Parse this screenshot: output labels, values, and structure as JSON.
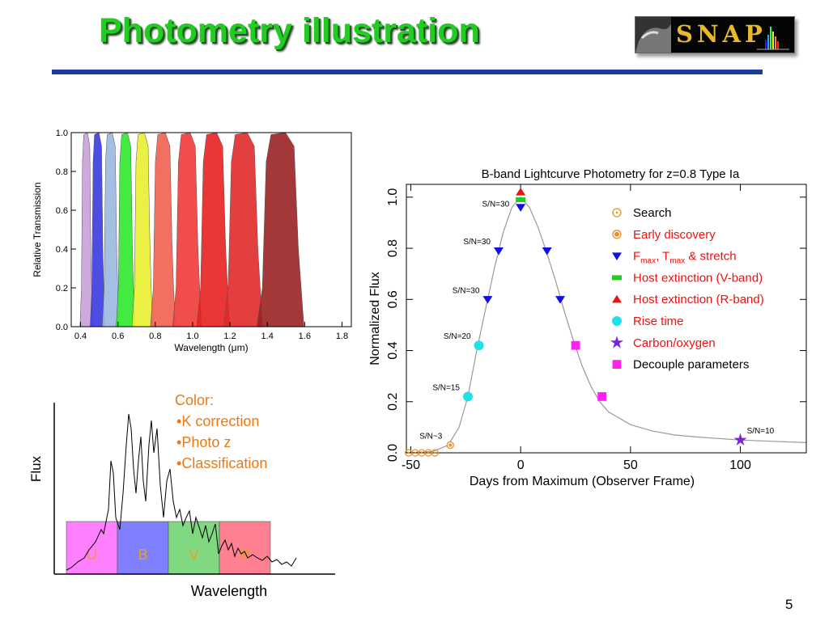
{
  "slide": {
    "title": "Photometry illustration",
    "page_number": "5"
  },
  "logo": {
    "text": "SNAP"
  },
  "filter_plot": {
    "ylabel": "Relative Transmission",
    "xlabel_prefix": "Wavelength (",
    "xlabel_unit": "μm",
    "xlabel_suffix": ")",
    "x_ticks": [
      "0.4",
      "0.6",
      "0.8",
      "1.0",
      "1.2",
      "1.4",
      "1.6",
      "1.8"
    ],
    "y_ticks": [
      "0.0",
      "0.2",
      "0.4",
      "0.6",
      "0.8",
      "1.0"
    ],
    "filters": [
      {
        "center": 0.43,
        "width": 0.06,
        "color": "#c8a0d8"
      },
      {
        "center": 0.49,
        "width": 0.07,
        "color": "#3a3adf"
      },
      {
        "center": 0.56,
        "width": 0.08,
        "color": "#9ab8e0"
      },
      {
        "center": 0.64,
        "width": 0.09,
        "color": "#2ee82e"
      },
      {
        "center": 0.73,
        "width": 0.1,
        "color": "#e8f030"
      },
      {
        "center": 0.84,
        "width": 0.12,
        "color": "#f06050"
      },
      {
        "center": 0.97,
        "width": 0.14,
        "color": "#f03a3a"
      },
      {
        "center": 1.11,
        "width": 0.16,
        "color": "#e82020"
      },
      {
        "center": 1.27,
        "width": 0.19,
        "color": "#e02a2a"
      },
      {
        "center": 1.47,
        "width": 0.23,
        "color": "#9a2222"
      }
    ]
  },
  "spectrum_panel": {
    "ylabel": "Flux",
    "xlabel": "Wavelength",
    "bands": [
      {
        "label": "U",
        "color": "#ff80ff"
      },
      {
        "label": "B",
        "color": "#7f7fff"
      },
      {
        "label": "V",
        "color": "#80d880"
      },
      {
        "label": "R",
        "color": "#ff8090"
      }
    ],
    "notes_title": "Color:",
    "notes": [
      "K correction",
      "Photo z",
      "Classification"
    ]
  },
  "chart_data": {
    "type": "scatter",
    "title": "B-band Lightcurve Photometry for z=0.8 Type Ia",
    "xlabel": "Days from Maximum (Observer Frame)",
    "ylabel": "Normalized Flux",
    "xlim": [
      -52,
      130
    ],
    "ylim": [
      0.0,
      1.05
    ],
    "x_ticks": [
      "-50",
      "0",
      "50",
      "100"
    ],
    "y_ticks": [
      "0.0",
      "0.2",
      "0.4",
      "0.6",
      "0.8",
      "1.0"
    ],
    "legend_position": "top-right",
    "series": [
      {
        "name": "Search",
        "marker": "circle-dot",
        "color": "#e8902a",
        "points": [
          {
            "x": -51,
            "y": 0.0
          },
          {
            "x": -48,
            "y": 0.0
          },
          {
            "x": -45,
            "y": 0.0
          },
          {
            "x": -42,
            "y": 0.0
          },
          {
            "x": -39,
            "y": 0.0
          }
        ]
      },
      {
        "name": "Early discovery",
        "marker": "circle-filled-ring",
        "color": "#e8902a",
        "points": [
          {
            "x": -32,
            "y": 0.03
          }
        ]
      },
      {
        "name": "Fmax, Tmax & stretch",
        "marker": "triangle-down",
        "color": "#1010e0",
        "points": [
          {
            "x": -10,
            "y": 0.79
          },
          {
            "x": -15,
            "y": 0.6
          },
          {
            "x": 0,
            "y": 0.96
          },
          {
            "x": 12,
            "y": 0.79
          },
          {
            "x": 18,
            "y": 0.6
          }
        ]
      },
      {
        "name": "Host extinction (V-band)",
        "marker": "rect",
        "color": "#22cc22",
        "points": [
          {
            "x": 0,
            "y": 0.99
          }
        ]
      },
      {
        "name": "Host extinction (R-band)",
        "marker": "triangle-up",
        "color": "#ee1111",
        "points": [
          {
            "x": 0,
            "y": 1.02
          }
        ]
      },
      {
        "name": "Rise time",
        "marker": "circle",
        "color": "#22e0e8",
        "points": [
          {
            "x": -19,
            "y": 0.42
          },
          {
            "x": -24,
            "y": 0.22
          }
        ]
      },
      {
        "name": "Carbon/oxygen",
        "marker": "star",
        "color": "#7a22e0",
        "points": [
          {
            "x": 100,
            "y": 0.05
          }
        ]
      },
      {
        "name": "Decouple parameters",
        "marker": "square",
        "color": "#ff22ee",
        "points": [
          {
            "x": 25,
            "y": 0.42
          },
          {
            "x": 37,
            "y": 0.22
          }
        ]
      }
    ],
    "curve": {
      "x": [
        -52,
        -40,
        -33,
        -28,
        -24,
        -20,
        -16,
        -12,
        -8,
        -4,
        0,
        4,
        8,
        12,
        16,
        20,
        24,
        28,
        32,
        36,
        40,
        50,
        60,
        70,
        80,
        90,
        100,
        115,
        130
      ],
      "y": [
        0.0,
        0.005,
        0.03,
        0.1,
        0.22,
        0.4,
        0.56,
        0.72,
        0.86,
        0.96,
        1.0,
        0.96,
        0.88,
        0.78,
        0.67,
        0.55,
        0.44,
        0.34,
        0.26,
        0.2,
        0.16,
        0.11,
        0.085,
        0.07,
        0.062,
        0.056,
        0.05,
        0.045,
        0.04
      ]
    },
    "annotations": [
      {
        "text": "S/N=30",
        "x": 0,
        "y": 0.96
      },
      {
        "text": "S/N=30",
        "x": -10,
        "y": 0.79
      },
      {
        "text": "S/N=30",
        "x": -15,
        "y": 0.6
      },
      {
        "text": "S/N=20",
        "x": -19,
        "y": 0.42
      },
      {
        "text": "S/N=15",
        "x": -24,
        "y": 0.22
      },
      {
        "text": "S/N~3",
        "x": -32,
        "y": 0.03
      },
      {
        "text": "S/N=10",
        "x": 100,
        "y": 0.05
      }
    ],
    "legend_labels": [
      {
        "main": "Search"
      },
      {
        "main": "Early discovery"
      },
      {
        "main": "F",
        "sub1": "max",
        "mid": ", T",
        "sub2": "max",
        "tail": " & stretch"
      },
      {
        "main": "Host extinction (V-band)"
      },
      {
        "main": "Host extinction (R-band)"
      },
      {
        "main": "Rise time"
      },
      {
        "main": "Carbon/oxygen"
      },
      {
        "main": "Decouple parameters"
      }
    ],
    "legend_colors": [
      "#000000",
      "#ee1111",
      "#ee1111",
      "#ee1111",
      "#ee1111",
      "#ee1111",
      "#ee1111",
      "#000000"
    ]
  }
}
